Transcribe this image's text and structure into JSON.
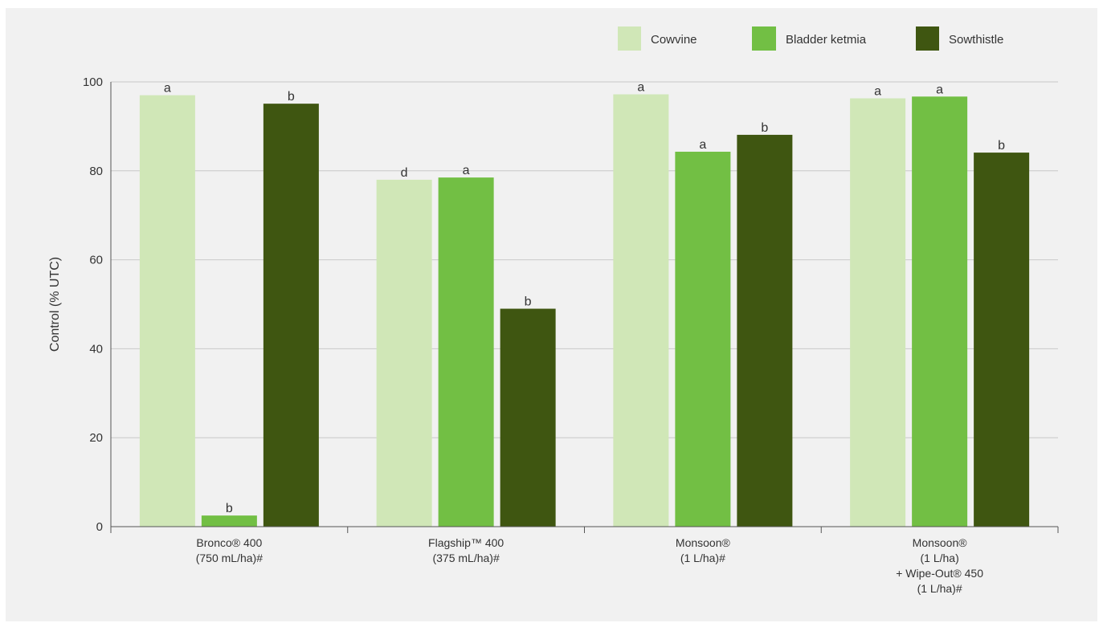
{
  "chart_data": {
    "type": "bar",
    "title": "",
    "xlabel": "",
    "ylabel": "Control (% UTC)",
    "ylim": [
      0,
      100
    ],
    "yticks": [
      0,
      20,
      40,
      60,
      80,
      100
    ],
    "grid": true,
    "legend_position": "top-right",
    "categories": [
      [
        "Bronco® 400",
        "(750 mL/ha)#"
      ],
      [
        "Flagship™ 400",
        "(375 mL/ha)#"
      ],
      [
        "Monsoon®",
        "(1 L/ha)#"
      ],
      [
        "Monsoon®",
        "(1 L/ha)",
        "+ Wipe-Out® 450",
        "(1 L/ha)#"
      ]
    ],
    "series": [
      {
        "name": "Cowvine",
        "color": "#d0e7b7",
        "values": [
          97,
          78,
          97.2,
          96.3
        ],
        "labels": [
          "a",
          "d",
          "a",
          "a"
        ]
      },
      {
        "name": "Bladder ketmia",
        "color": "#72bf44",
        "values": [
          2.5,
          78.5,
          84.3,
          96.7
        ],
        "labels": [
          "b",
          "a",
          "a",
          "a"
        ]
      },
      {
        "name": "Sowthistle",
        "color": "#3f5611",
        "values": [
          95.1,
          49,
          88.1,
          84.1
        ],
        "labels": [
          "b",
          "b",
          "b",
          "b"
        ]
      }
    ]
  }
}
